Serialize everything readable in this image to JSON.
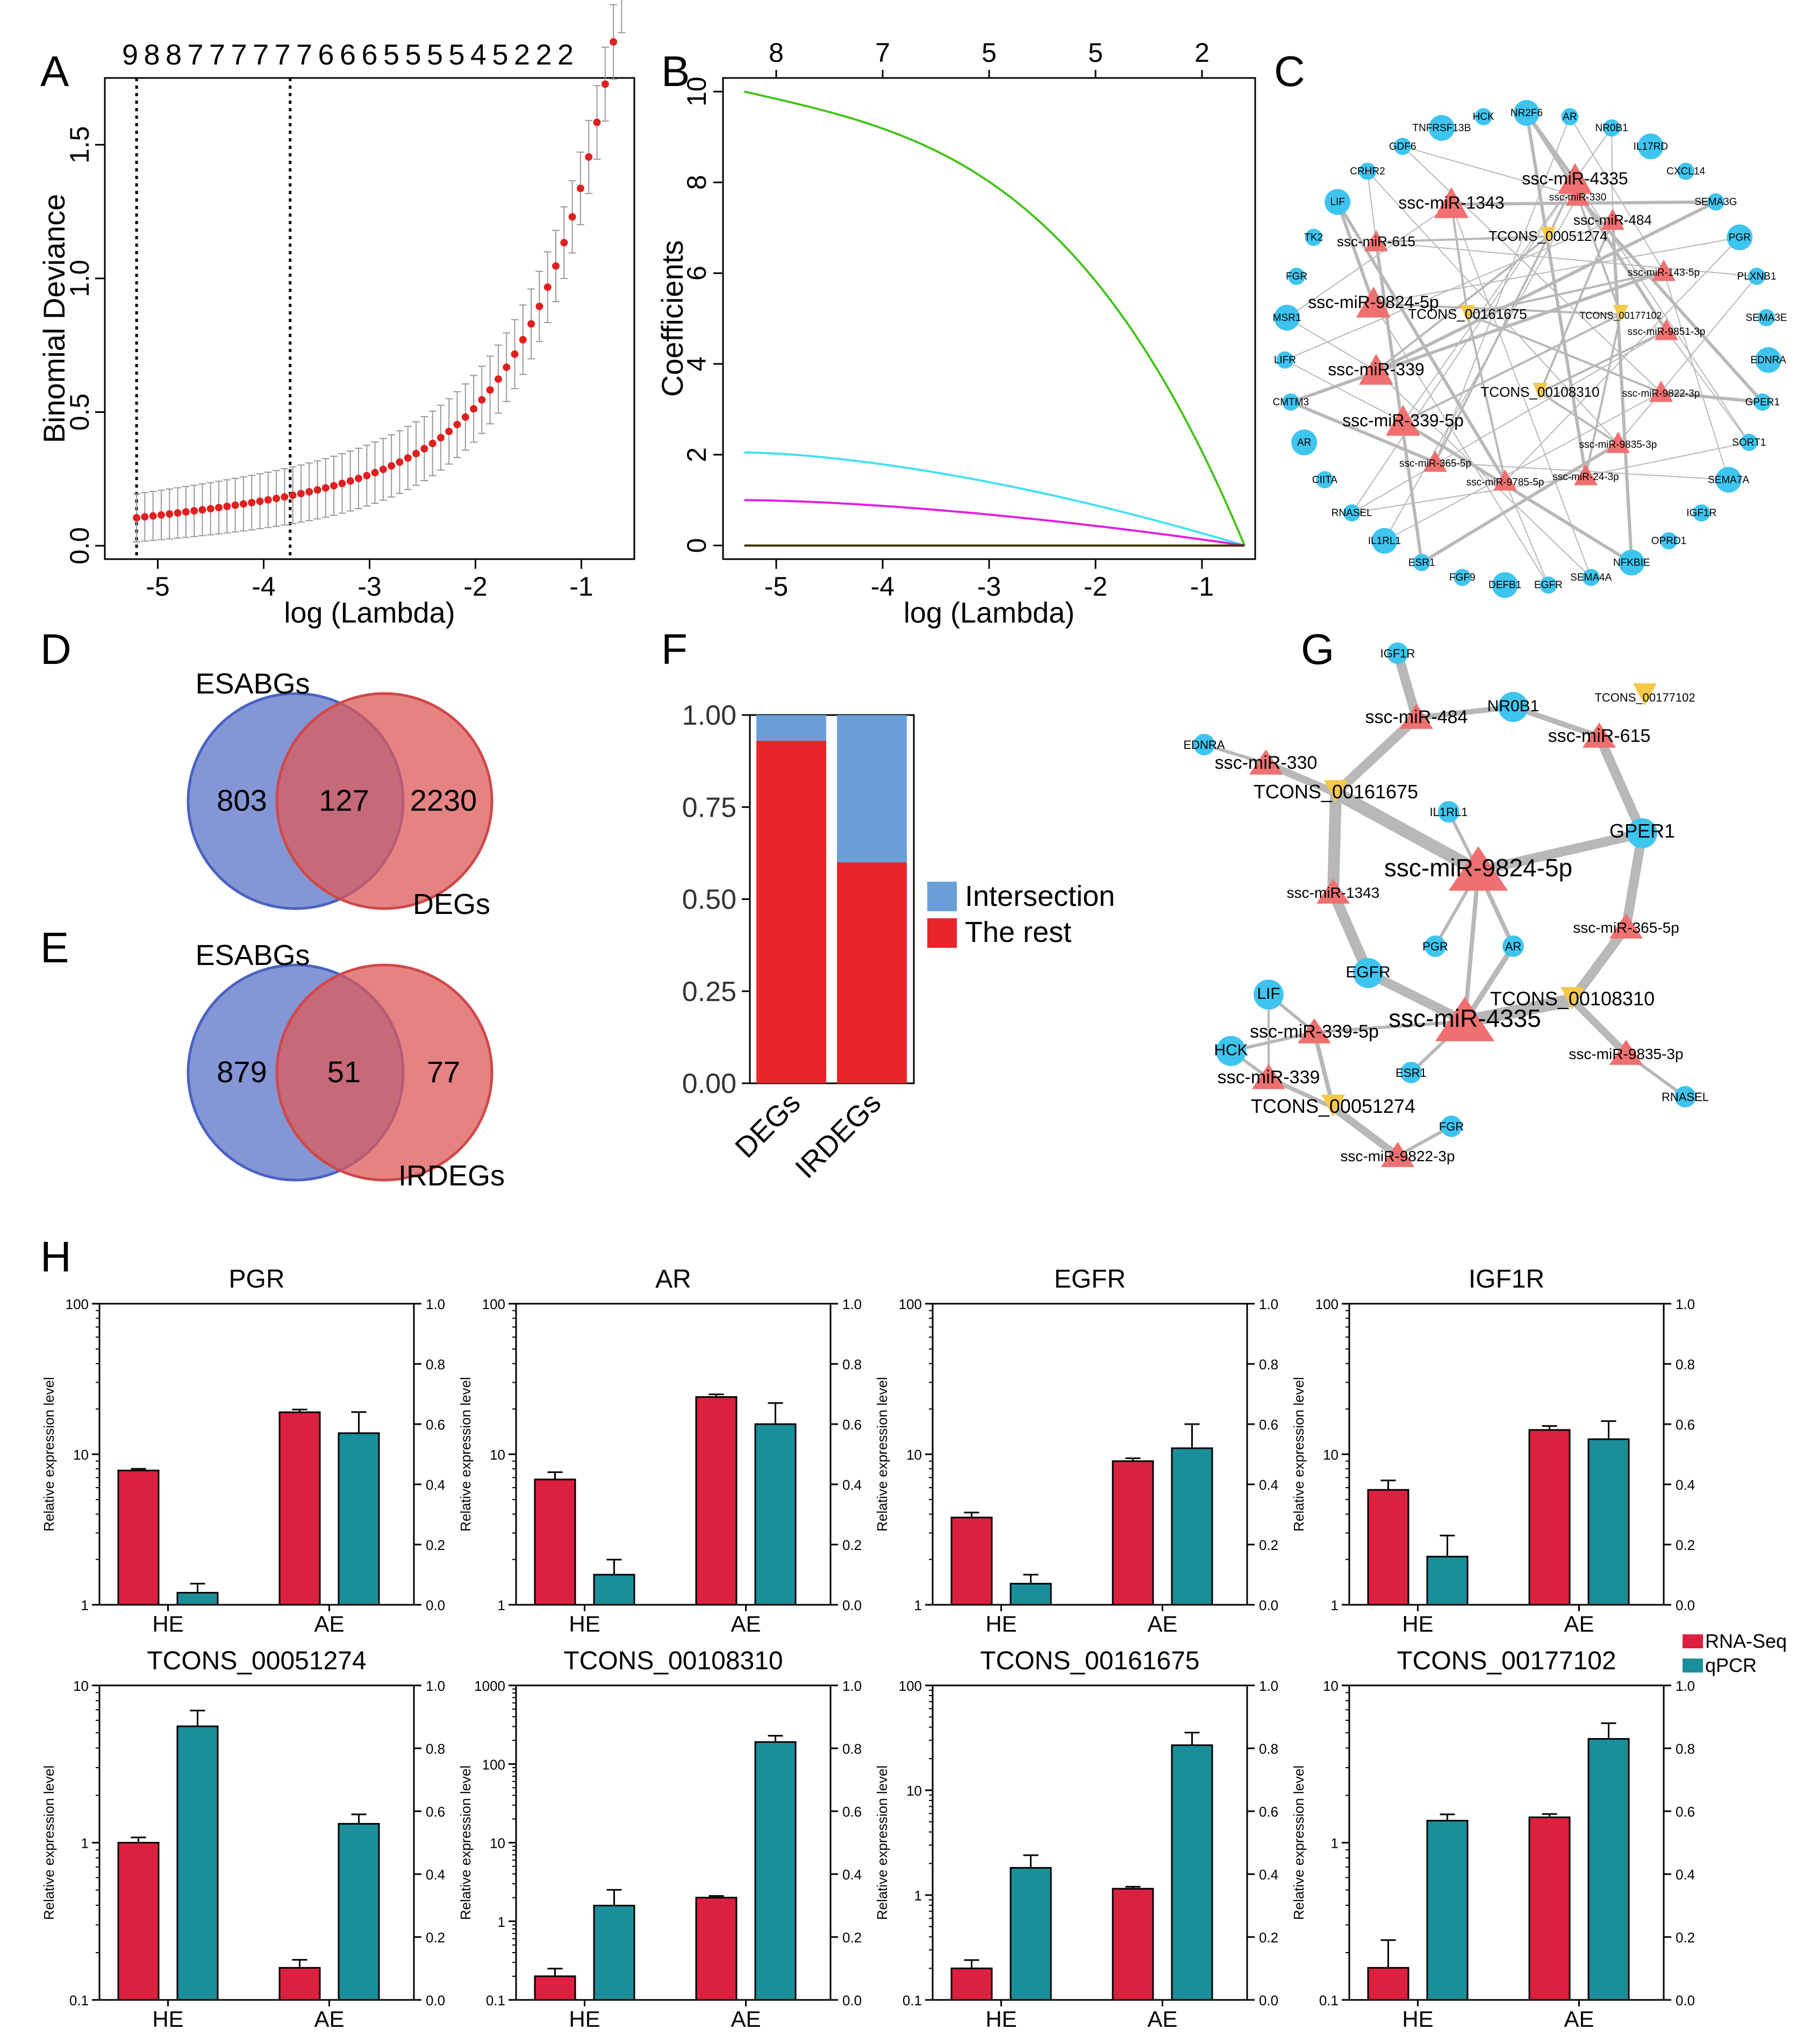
{
  "panel_letters": {
    "a": "A",
    "b": "B",
    "c": "C",
    "d": "D",
    "e": "E",
    "f": "F",
    "g": "G",
    "h": "H"
  },
  "colors": {
    "red": "#e02020",
    "blue_venn": "#5b73c7",
    "red_venn": "#dc5a5a",
    "bar_blue": "#6b9fd8",
    "bar_red": "#e8262a",
    "rnaseq": "#dc2040",
    "qpcr": "#1b8e9b",
    "node_blue": "#3ec5ef",
    "node_red": "#ef7070",
    "node_yellow": "#f7c948",
    "edge": "#b8b8b8"
  },
  "chart_data": [
    {
      "id": "A",
      "type": "scatter",
      "title": "",
      "xlabel": "log (Lambda)",
      "ylabel": "Binomial Deviance",
      "xlim": [
        -5.5,
        -0.5
      ],
      "ylim": [
        -0.05,
        1.75
      ],
      "xticks": [
        "-5",
        "-4",
        "-3",
        "-2",
        "-1"
      ],
      "yticks": [
        "0.0",
        "0.5",
        "1.0",
        "1.5"
      ],
      "top_labels": [
        "9",
        "8",
        "8",
        "7",
        "7",
        "7",
        "7",
        "7",
        "7",
        "6",
        "6",
        "6",
        "5",
        "5",
        "5",
        "5",
        "4",
        "5",
        "2",
        "2",
        "2"
      ],
      "vlines": [
        -5.2,
        -3.75
      ],
      "points": {
        "x0": -5.2,
        "x1": -0.62,
        "n": 60,
        "base": 0.1,
        "grow": 0.2,
        "exp_k": 4.6
      }
    },
    {
      "id": "B",
      "type": "line",
      "xlabel": "log (Lambda)",
      "ylabel": "Coefficients",
      "xlim": [
        -5.5,
        -0.5
      ],
      "ylim": [
        -0.3,
        10.3
      ],
      "xticks": [
        "-5",
        "-4",
        "-3",
        "-2",
        "-1"
      ],
      "yticks": [
        "0",
        "2",
        "4",
        "6",
        "8",
        "10"
      ],
      "top_labels": [
        "8",
        "7",
        "5",
        "5",
        "2"
      ],
      "series": [
        {
          "name": "green",
          "color": "#46c21b",
          "values_start": 10.0,
          "end_x": -0.6
        },
        {
          "name": "cyan",
          "color": "#45e0ee",
          "values_start": 2.05,
          "end_x": -0.6
        },
        {
          "name": "magenta",
          "color": "#e020e0",
          "values_start": 1.0,
          "end_x": -0.6
        },
        {
          "name": "flat",
          "color": "#403000",
          "values_start": 0.0,
          "end_x": -0.6
        }
      ]
    },
    {
      "id": "C",
      "type": "network",
      "nodes_mirna": [
        "ssc-miR-4335",
        "ssc-miR-1343",
        "ssc-miR-330",
        "ssc-miR-484",
        "ssc-miR-615",
        "ssc-miR-143-5p",
        "ssc-miR-9824-5p",
        "ssc-miR-9851-3p",
        "ssc-miR-339",
        "ssc-miR-9822-3p",
        "ssc-miR-339-5p",
        "ssc-miR-9835-3p",
        "ssc-miR-365-5p",
        "ssc-miR-9785-5p",
        "ssc-miR-24-3p"
      ],
      "nodes_lnc": [
        "TCONS_00051274",
        "TCONS_00161675",
        "TCONS_00177102",
        "TCONS_00108310"
      ],
      "nodes_gene": [
        "NR2F6",
        "AR",
        "NR0B1",
        "IL17RD",
        "CXCL14",
        "SEMA3G",
        "PGR",
        "PLXNB1",
        "SEMA3E",
        "EDNRA",
        "GPER1",
        "SORT1",
        "SEMA7A",
        "IGF1R",
        "OPRD1",
        "NFKBIE",
        "SEMA4A",
        "EGFR",
        "DEFB1",
        "FGF9",
        "ESR1",
        "IL1RL1",
        "RNASEL",
        "CIITA",
        "AR",
        "CMTM3",
        "LIFR",
        "MSR1",
        "FGR",
        "TK2",
        "LIF",
        "CRHR2",
        "GDF6",
        "TNFRSF13B",
        "HCK"
      ]
    },
    {
      "id": "D",
      "type": "venn",
      "left_label": "ESABGs",
      "right_label": "DEGs",
      "left": "803",
      "mid": "127",
      "right": "2230"
    },
    {
      "id": "E",
      "type": "venn",
      "left_label": "ESABGs",
      "right_label": "IRDEGs",
      "left": "879",
      "mid": "51",
      "right": "77"
    },
    {
      "id": "F",
      "type": "bar",
      "stacked": true,
      "categories": [
        "DEGs",
        "IRDEGs"
      ],
      "series": [
        {
          "name": "Intersection",
          "values": [
            0.07,
            0.4
          ]
        },
        {
          "name": "The rest",
          "values": [
            0.93,
            0.6
          ]
        }
      ],
      "yticks": [
        "0.00",
        "0.25",
        "0.50",
        "0.75",
        "1.00"
      ],
      "ylim": [
        0,
        1
      ]
    },
    {
      "id": "G",
      "type": "network",
      "nodes": [
        "IGF1R",
        "TCONS_00177102",
        "ssc-miR-484",
        "NR0B1",
        "ssc-miR-615",
        "EDNRA",
        "ssc-miR-330",
        "TCONS_00161675",
        "IL1RL1",
        "GPER1",
        "ssc-miR-9824-5p",
        "ssc-miR-1343",
        "ssc-miR-365-5p",
        "PGR",
        "AR",
        "EGFR",
        "TCONS_00108310",
        "LIF",
        "ssc-miR-4335",
        "ssc-miR-339-5p",
        "HCK",
        "ESR1",
        "ssc-miR-9835-3p",
        "ssc-miR-339",
        "RNASEL",
        "TCONS_00051274",
        "FGR",
        "ssc-miR-9822-3p"
      ]
    },
    {
      "id": "H",
      "type": "bar",
      "xlabel_cats": [
        "HE",
        "AE"
      ],
      "ylabel": "Relative expression level",
      "legend": [
        "RNA-Seq",
        "qPCR"
      ],
      "right_ticks": [
        "0.0",
        "0.2",
        "0.4",
        "0.6",
        "0.8",
        "1.0"
      ],
      "subplots": [
        {
          "title": "PGR",
          "log_min": 1,
          "log_max": 100,
          "left_ticks": [
            "1",
            "10",
            "100"
          ],
          "rnaseq": [
            7.8,
            19
          ],
          "rnaseq_err": [
            0.2,
            0.8
          ],
          "qpcr": [
            0.04,
            0.57
          ],
          "qpcr_err": [
            0.03,
            0.07
          ]
        },
        {
          "title": "AR",
          "log_min": 1,
          "log_max": 100,
          "left_ticks": [
            "1",
            "10",
            "100"
          ],
          "rnaseq": [
            6.8,
            24
          ],
          "rnaseq_err": [
            0.8,
            1
          ],
          "qpcr": [
            0.1,
            0.6
          ],
          "qpcr_err": [
            0.05,
            0.07
          ]
        },
        {
          "title": "EGFR",
          "log_min": 1,
          "log_max": 100,
          "left_ticks": [
            "1",
            "10",
            "100"
          ],
          "rnaseq": [
            3.8,
            9
          ],
          "rnaseq_err": [
            0.3,
            0.4
          ],
          "qpcr": [
            0.07,
            0.52
          ],
          "qpcr_err": [
            0.03,
            0.08
          ]
        },
        {
          "title": "IGF1R",
          "log_min": 1,
          "log_max": 100,
          "left_ticks": [
            "1",
            "10",
            "100"
          ],
          "rnaseq": [
            5.8,
            14.5
          ],
          "rnaseq_err": [
            0.9,
            0.9
          ],
          "qpcr": [
            0.16,
            0.55
          ],
          "qpcr_err": [
            0.07,
            0.06
          ]
        },
        {
          "title": "TCONS_00051274",
          "log_min": 0.1,
          "log_max": 10,
          "left_ticks": [
            "0.1",
            "1",
            "10"
          ],
          "rnaseq": [
            1.0,
            0.16
          ],
          "rnaseq_err": [
            0.08,
            0.02
          ],
          "qpcr": [
            0.87,
            0.56
          ],
          "qpcr_err": [
            0.05,
            0.03
          ]
        },
        {
          "title": "TCONS_00108310",
          "log_min": 0.1,
          "log_max": 1000,
          "left_ticks": [
            "0.1",
            "1",
            "10",
            "100",
            "1000"
          ],
          "rnaseq": [
            0.2,
            2.0
          ],
          "rnaseq_err": [
            0.05,
            0.1
          ],
          "qpcr": [
            0.3,
            0.82
          ],
          "qpcr_err": [
            0.05,
            0.02
          ]
        },
        {
          "title": "TCONS_00161675",
          "log_min": 0.1,
          "log_max": 100,
          "left_ticks": [
            "0.1",
            "1",
            "10",
            "100"
          ],
          "rnaseq": [
            0.2,
            1.15
          ],
          "rnaseq_err": [
            0.04,
            0.05
          ],
          "qpcr": [
            0.42,
            0.81
          ],
          "qpcr_err": [
            0.04,
            0.04
          ]
        },
        {
          "title": "TCONS_00177102",
          "log_min": 0.1,
          "log_max": 10,
          "left_ticks": [
            "0.1",
            "1",
            "10"
          ],
          "rnaseq": [
            0.16,
            1.45
          ],
          "rnaseq_err": [
            0.08,
            0.07
          ],
          "qpcr": [
            0.57,
            0.83
          ],
          "qpcr_err": [
            0.02,
            0.05
          ]
        }
      ]
    }
  ]
}
